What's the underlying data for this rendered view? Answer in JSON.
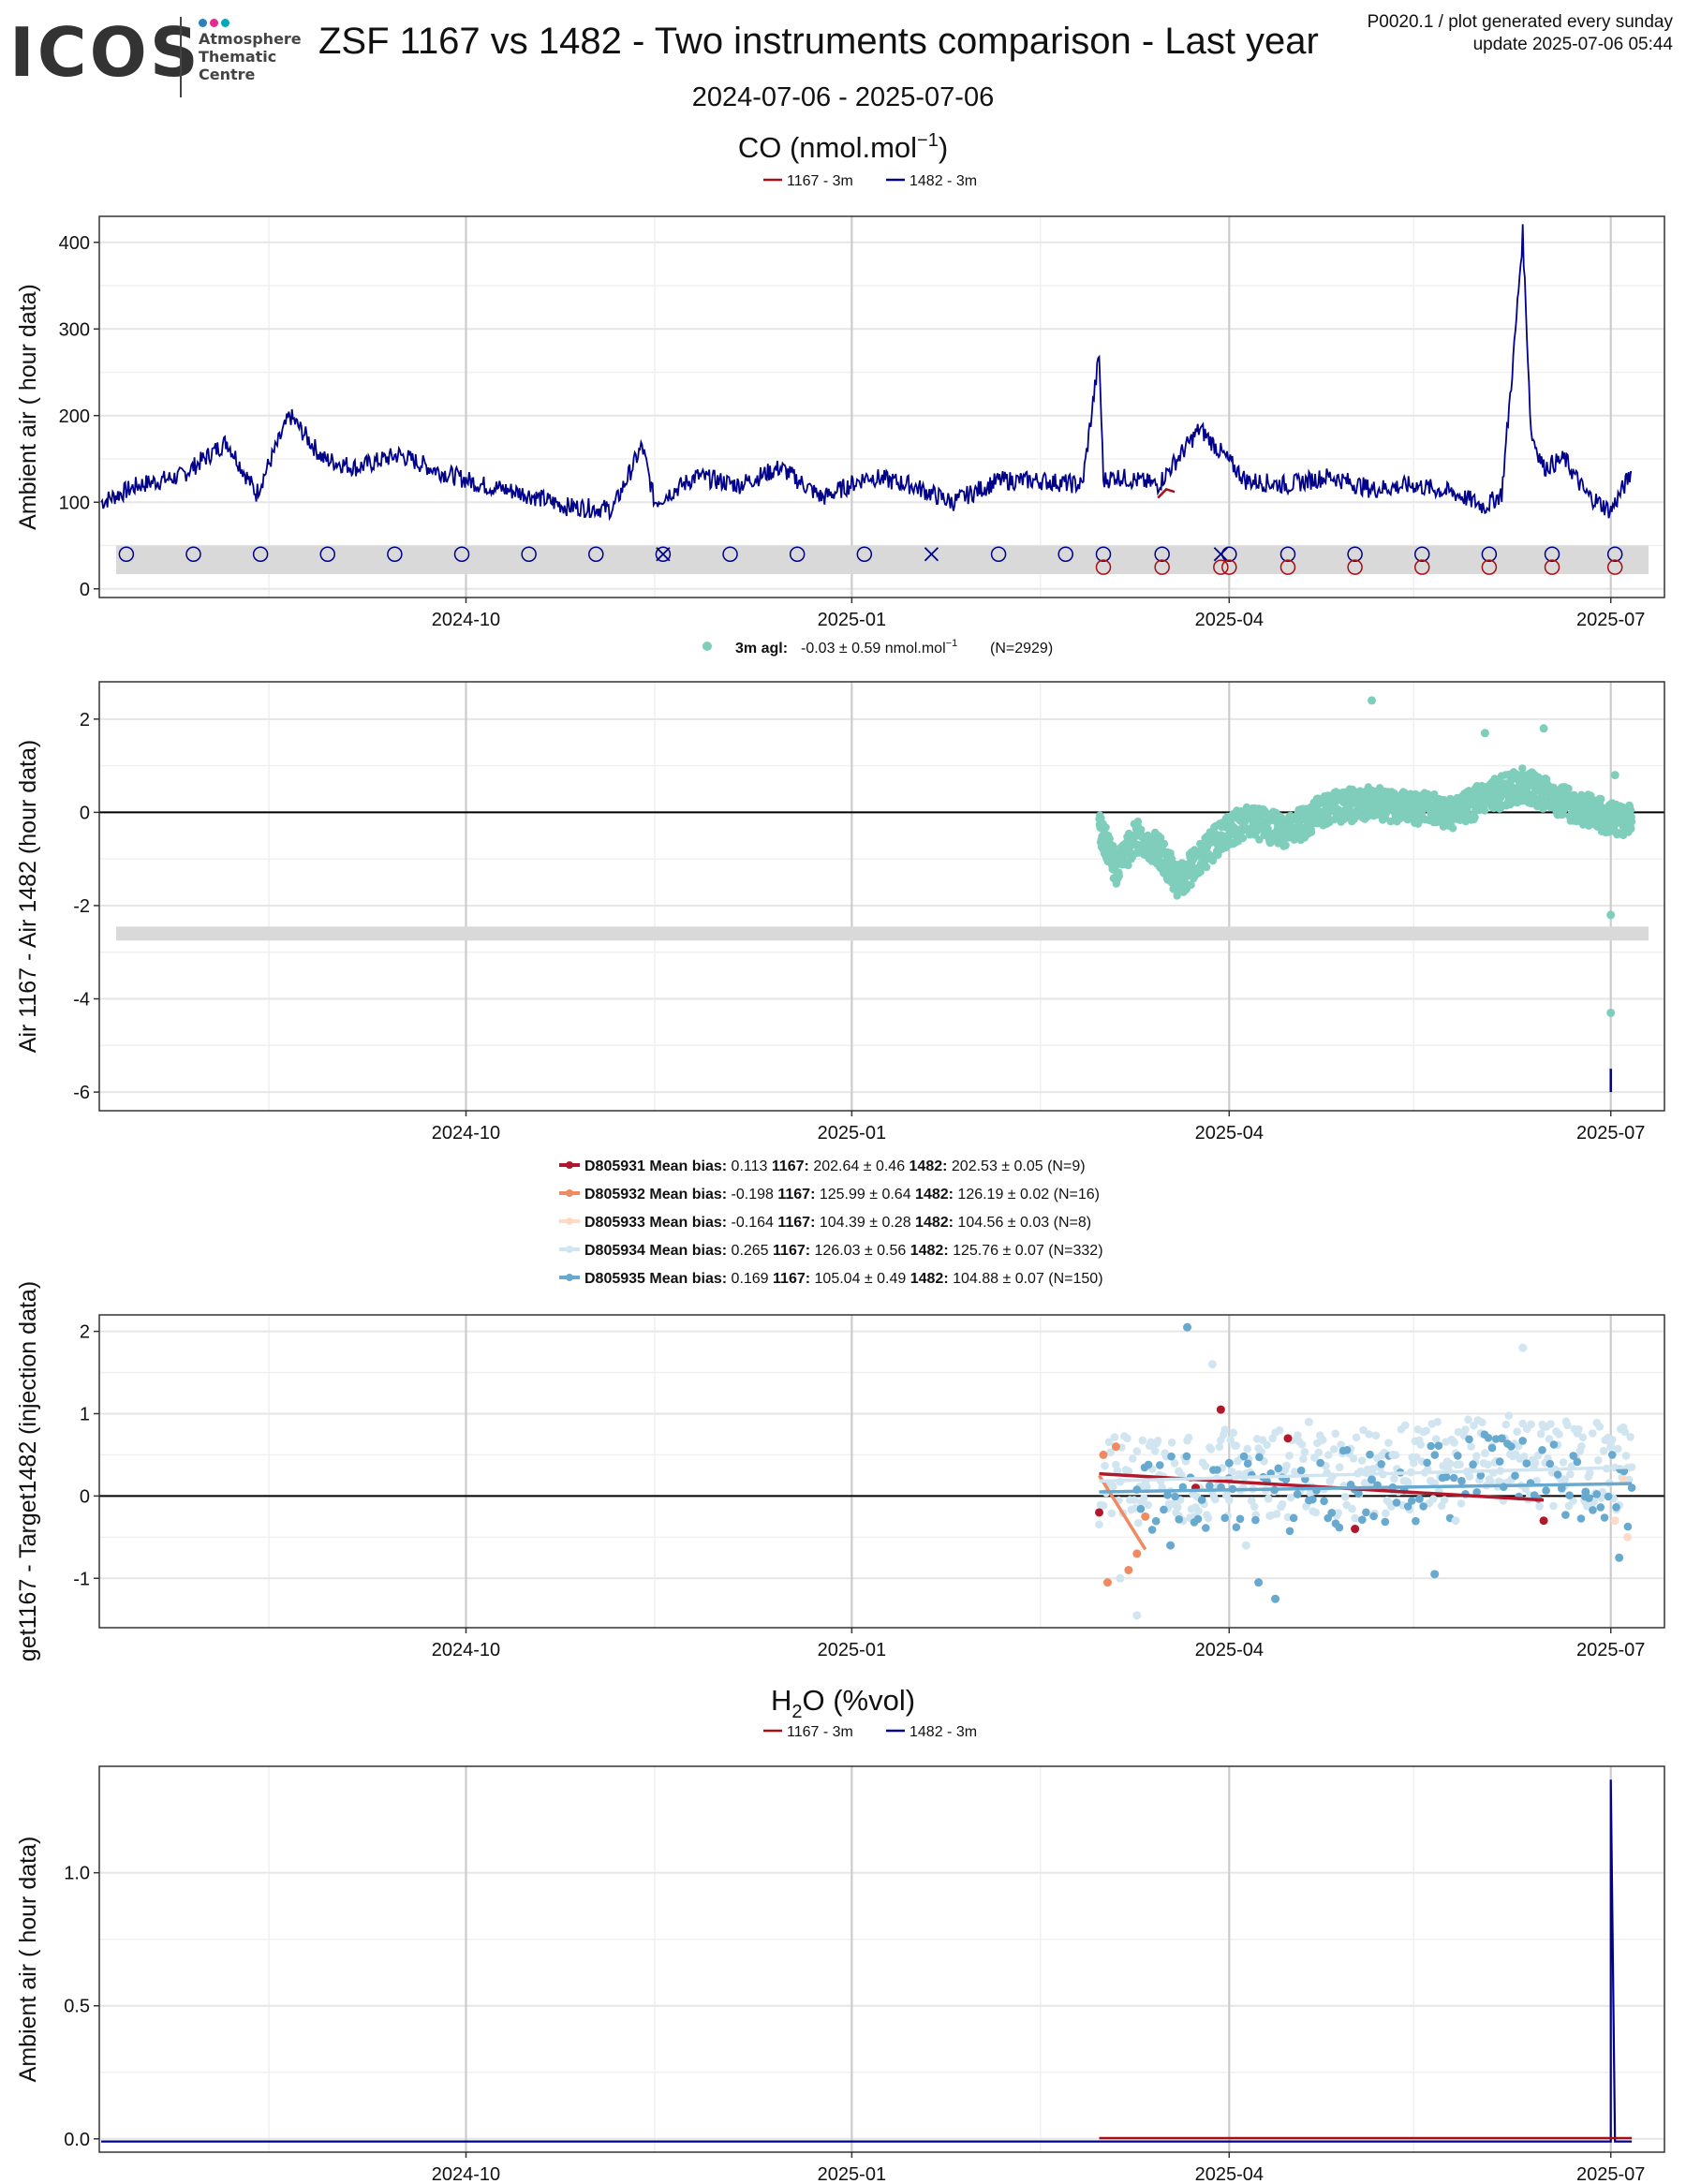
{
  "logo": {
    "word": "ICOS",
    "lines": [
      "Atmosphere",
      "Thematic",
      "Centre"
    ],
    "dot_colors": [
      "#2c7fb8",
      "#e7298a",
      "#00a9b5"
    ]
  },
  "header": {
    "title": "ZSF 1167 vs 1482 - Two instruments comparison - Last year",
    "product_line": "P0020.1 / plot generated every sunday",
    "update_line": "update  2025-07-06 05:44",
    "date_range": "2024-07-06 - 2025-07-06"
  },
  "colors": {
    "s1167": "#a50f15",
    "s1482": "#00008b",
    "diff": "#7fcdbb",
    "D805931": "#b2182b",
    "D805932": "#ef8a62",
    "D805933": "#fddbc7",
    "D805934": "#d1e5f0",
    "D805935": "#67a9cf"
  },
  "chart_data": [
    {
      "type": "line",
      "section_title": "CO (nmol.mol",
      "section_title_sup": "−1",
      "section_title_end": ")",
      "legend": [
        "1167 - 3m",
        "1482 - 3m"
      ],
      "ylabel": "Ambient air ( hour data)",
      "x_ticks": [
        "2024-10",
        "2025-01",
        "2025-04",
        "2025-07"
      ],
      "xlim": [
        "2024-07-06",
        "2025-07-10"
      ],
      "ylim": [
        -10,
        430
      ],
      "y_ticks": [
        0,
        100,
        200,
        300,
        400
      ],
      "series_1482": {
        "name": "1482 - 3m",
        "x": [
          "2024-07-06",
          "2024-07-15",
          "2024-07-25",
          "2024-08-05",
          "2024-08-12",
          "2024-08-20",
          "2024-08-28",
          "2024-09-05",
          "2024-09-15",
          "2024-09-25",
          "2024-10-05",
          "2024-10-15",
          "2024-10-25",
          "2024-11-05",
          "2024-11-12",
          "2024-11-15",
          "2024-11-25",
          "2024-12-05",
          "2024-12-15",
          "2024-12-25",
          "2025-01-05",
          "2025-01-15",
          "2025-01-25",
          "2025-02-05",
          "2025-02-15",
          "2025-02-25",
          "2025-03-01",
          "2025-03-02",
          "2025-03-05",
          "2025-03-15",
          "2025-03-25",
          "2025-04-05",
          "2025-04-15",
          "2025-04-25",
          "2025-05-05",
          "2025-05-15",
          "2025-05-25",
          "2025-06-01",
          "2025-06-05",
          "2025-06-08",
          "2025-06-10",
          "2025-06-12",
          "2025-06-15",
          "2025-06-20",
          "2025-06-25",
          "2025-07-01",
          "2025-07-06"
        ],
        "y": [
          100,
          120,
          130,
          170,
          110,
          200,
          150,
          140,
          155,
          135,
          120,
          110,
          95,
          92,
          165,
          100,
          130,
          120,
          140,
          105,
          130,
          120,
          100,
          125,
          125,
          120,
          270,
          125,
          130,
          120,
          185,
          125,
          120,
          130,
          115,
          120,
          110,
          95,
          110,
          280,
          410,
          180,
          140,
          150,
          110,
          90,
          135
        ]
      },
      "series_1167": {
        "name": "1167 - 3m",
        "x": [
          "2025-03-15",
          "2025-03-17",
          "2025-03-19"
        ],
        "y": [
          105,
          115,
          112
        ]
      },
      "calibration_band": [
        17,
        50
      ],
      "markers_1482_circle": [
        "2024-07-12",
        "2024-07-28",
        "2024-08-13",
        "2024-08-29",
        "2024-09-14",
        "2024-09-30",
        "2024-10-16",
        "2024-11-01",
        "2024-11-17",
        "2024-12-03",
        "2024-12-19",
        "2025-01-04",
        "2025-02-05",
        "2025-02-21",
        "2025-03-02",
        "2025-03-16",
        "2025-04-01",
        "2025-04-15",
        "2025-05-01",
        "2025-05-17",
        "2025-06-02",
        "2025-06-17",
        "2025-07-02"
      ],
      "markers_1482_cross": [
        "2024-11-17",
        "2025-01-20",
        "2025-03-30"
      ],
      "markers_1167_circle": [
        "2025-03-02",
        "2025-03-16",
        "2025-03-30",
        "2025-04-01",
        "2025-04-15",
        "2025-05-01",
        "2025-05-17",
        "2025-06-02",
        "2025-06-17",
        "2025-07-02"
      ]
    },
    {
      "type": "scatter",
      "legend_label": "3m agl:",
      "legend_stats": "-0.03 ± 0.59 nmol.mol",
      "legend_sup": "−1",
      "legend_n": "(N=2929)",
      "ylabel": "Air 1167 - Air 1482 (hour data)",
      "x_ticks": [
        "2024-10",
        "2025-01",
        "2025-04",
        "2025-07"
      ],
      "ylim": [
        -6.4,
        2.8
      ],
      "y_ticks": [
        2,
        0,
        -2,
        -4,
        -6
      ],
      "tick_labels": [
        "2",
        "0",
        "-2",
        "-4",
        "-6"
      ],
      "band": [
        -2.75,
        -2.45
      ],
      "trend_x": [
        "2025-03-01",
        "2025-03-05",
        "2025-03-10",
        "2025-03-15",
        "2025-03-20",
        "2025-03-25",
        "2025-03-30",
        "2025-04-05",
        "2025-04-15",
        "2025-04-25",
        "2025-05-05",
        "2025-05-15",
        "2025-05-25",
        "2025-06-01",
        "2025-06-10",
        "2025-06-20",
        "2025-06-30",
        "2025-07-06"
      ],
      "trend_y": [
        -0.3,
        -1.2,
        -0.5,
        -0.8,
        -1.5,
        -1.0,
        -0.5,
        -0.2,
        -0.4,
        0.1,
        0.2,
        0.1,
        0.0,
        0.3,
        0.6,
        0.2,
        -0.1,
        -0.2
      ],
      "outliers": [
        {
          "x": "2025-05-05",
          "y": 2.4
        },
        {
          "x": "2025-06-01",
          "y": 1.7
        },
        {
          "x": "2025-06-15",
          "y": 1.8
        },
        {
          "x": "2025-07-02",
          "y": 0.8
        },
        {
          "x": "2025-07-01",
          "y": -2.2
        },
        {
          "x": "2025-07-01",
          "y": -4.3
        }
      ]
    },
    {
      "type": "scatter",
      "ylabel": "get1167 - Target1482 (injection data)",
      "x_ticks": [
        "2024-10",
        "2025-01",
        "2025-04",
        "2025-07"
      ],
      "ylim": [
        -1.6,
        2.2
      ],
      "y_ticks": [
        2,
        1,
        0,
        -1
      ],
      "tick_labels": [
        "2",
        "1",
        "0",
        "-1"
      ],
      "legend": [
        {
          "id": "D805931",
          "bias_label": "Mean bias:",
          "bias": "0.113",
          "a_label": "1167:",
          "a": "202.64 ± 0.46",
          "b_label": "1482:",
          "b": "202.53 ± 0.05 (N=9)"
        },
        {
          "id": "D805932",
          "bias_label": "Mean bias:",
          "bias": "-0.198",
          "a_label": "1167:",
          "a": "125.99 ± 0.64",
          "b_label": "1482:",
          "b": "126.19 ± 0.02 (N=16)"
        },
        {
          "id": "D805933",
          "bias_label": "Mean bias:",
          "bias": "-0.164",
          "a_label": "1167:",
          "a": "104.39 ± 0.28",
          "b_label": "1482:",
          "b": "104.56 ± 0.03 (N=8)"
        },
        {
          "id": "D805934",
          "bias_label": "Mean bias:",
          "bias": "0.265",
          "a_label": "1167:",
          "a": "126.03 ± 0.56",
          "b_label": "1482:",
          "b": "125.76 ± 0.07 (N=332)"
        },
        {
          "id": "D805935",
          "bias_label": "Mean bias:",
          "bias": "0.169",
          "a_label": "1167:",
          "a": "105.04 ± 0.49",
          "b_label": "1482:",
          "b": "104.88 ± 0.07 (N=150)"
        }
      ],
      "fits": [
        {
          "id": "D805931",
          "x": [
            "2025-03-01",
            "2025-06-15"
          ],
          "y": [
            0.27,
            -0.05
          ]
        },
        {
          "id": "D805932",
          "x": [
            "2025-03-01",
            "2025-03-12"
          ],
          "y": [
            0.25,
            -0.65
          ]
        },
        {
          "id": "D805934",
          "x": [
            "2025-03-01",
            "2025-07-06"
          ],
          "y": [
            0.18,
            0.35
          ]
        },
        {
          "id": "D805935",
          "x": [
            "2025-03-01",
            "2025-07-06"
          ],
          "y": [
            0.05,
            0.15
          ]
        }
      ],
      "points": [
        {
          "id": "D805931",
          "x": "2025-03-01",
          "y": -0.2
        },
        {
          "id": "D805931",
          "x": "2025-03-24",
          "y": 0.1
        },
        {
          "id": "D805931",
          "x": "2025-03-30",
          "y": 1.05
        },
        {
          "id": "D805931",
          "x": "2025-04-15",
          "y": 0.7
        },
        {
          "id": "D805931",
          "x": "2025-05-01",
          "y": -0.4
        },
        {
          "id": "D805931",
          "x": "2025-06-15",
          "y": -0.3
        },
        {
          "id": "D805932",
          "x": "2025-03-02",
          "y": 0.5
        },
        {
          "id": "D805932",
          "x": "2025-03-03",
          "y": -1.05
        },
        {
          "id": "D805932",
          "x": "2025-03-05",
          "y": 0.6
        },
        {
          "id": "D805932",
          "x": "2025-03-08",
          "y": -0.9
        },
        {
          "id": "D805932",
          "x": "2025-03-10",
          "y": -0.7
        },
        {
          "id": "D805932",
          "x": "2025-03-12",
          "y": -0.25
        },
        {
          "id": "D805933",
          "x": "2025-07-02",
          "y": -0.3
        },
        {
          "id": "D805933",
          "x": "2025-07-04",
          "y": 0.2
        },
        {
          "id": "D805933",
          "x": "2025-07-05",
          "y": -0.5
        },
        {
          "id": "D805934",
          "x": "2025-03-06",
          "y": -1.0
        },
        {
          "id": "D805934",
          "x": "2025-03-10",
          "y": -1.45
        },
        {
          "id": "D805934",
          "x": "2025-03-20",
          "y": 0.3
        },
        {
          "id": "D805934",
          "x": "2025-03-28",
          "y": 1.6
        },
        {
          "id": "D805934",
          "x": "2025-04-05",
          "y": -0.6
        },
        {
          "id": "D805934",
          "x": "2025-04-20",
          "y": 0.9
        },
        {
          "id": "D805934",
          "x": "2025-05-10",
          "y": 0.5
        },
        {
          "id": "D805934",
          "x": "2025-05-25",
          "y": -0.3
        },
        {
          "id": "D805934",
          "x": "2025-06-10",
          "y": 1.8
        },
        {
          "id": "D805934",
          "x": "2025-06-20",
          "y": 0.2
        },
        {
          "id": "D805934",
          "x": "2025-07-01",
          "y": 0.6
        },
        {
          "id": "D805935",
          "x": "2025-03-18",
          "y": -0.6
        },
        {
          "id": "D805935",
          "x": "2025-03-22",
          "y": 2.05
        },
        {
          "id": "D805935",
          "x": "2025-04-01",
          "y": 0.4
        },
        {
          "id": "D805935",
          "x": "2025-04-08",
          "y": -1.05
        },
        {
          "id": "D805935",
          "x": "2025-04-12",
          "y": -1.25
        },
        {
          "id": "D805935",
          "x": "2025-05-05",
          "y": 0.2
        },
        {
          "id": "D805935",
          "x": "2025-05-20",
          "y": -0.95
        },
        {
          "id": "D805935",
          "x": "2025-06-05",
          "y": 0.7
        },
        {
          "id": "D805935",
          "x": "2025-06-25",
          "y": 0.05
        },
        {
          "id": "D805935",
          "x": "2025-07-03",
          "y": -0.75
        }
      ]
    },
    {
      "type": "line",
      "section_title": "H",
      "section_title_sub": "2",
      "section_title_end": "O (%vol)",
      "legend": [
        "1167 - 3m",
        "1482 - 3m"
      ],
      "ylabel": "Ambient air ( hour data)",
      "x_ticks": [
        "2024-10",
        "2025-01",
        "2025-04",
        "2025-07"
      ],
      "ylim": [
        -0.05,
        1.4
      ],
      "y_ticks": [
        0.0,
        0.5,
        1.0
      ],
      "tick_labels": [
        "0.0",
        "0.5",
        "1.0"
      ],
      "series_1482": {
        "name": "1482 - 3m",
        "x": [
          "2024-07-06",
          "2025-06-30",
          "2025-07-01",
          "2025-07-01",
          "2025-07-02",
          "2025-07-06"
        ],
        "y": [
          -0.01,
          -0.01,
          -0.01,
          1.35,
          -0.01,
          -0.01
        ]
      },
      "series_1167": {
        "name": "1167 - 3m",
        "x": [
          "2025-03-01",
          "2025-07-06"
        ],
        "y": [
          0.003,
          0.003
        ]
      }
    }
  ]
}
